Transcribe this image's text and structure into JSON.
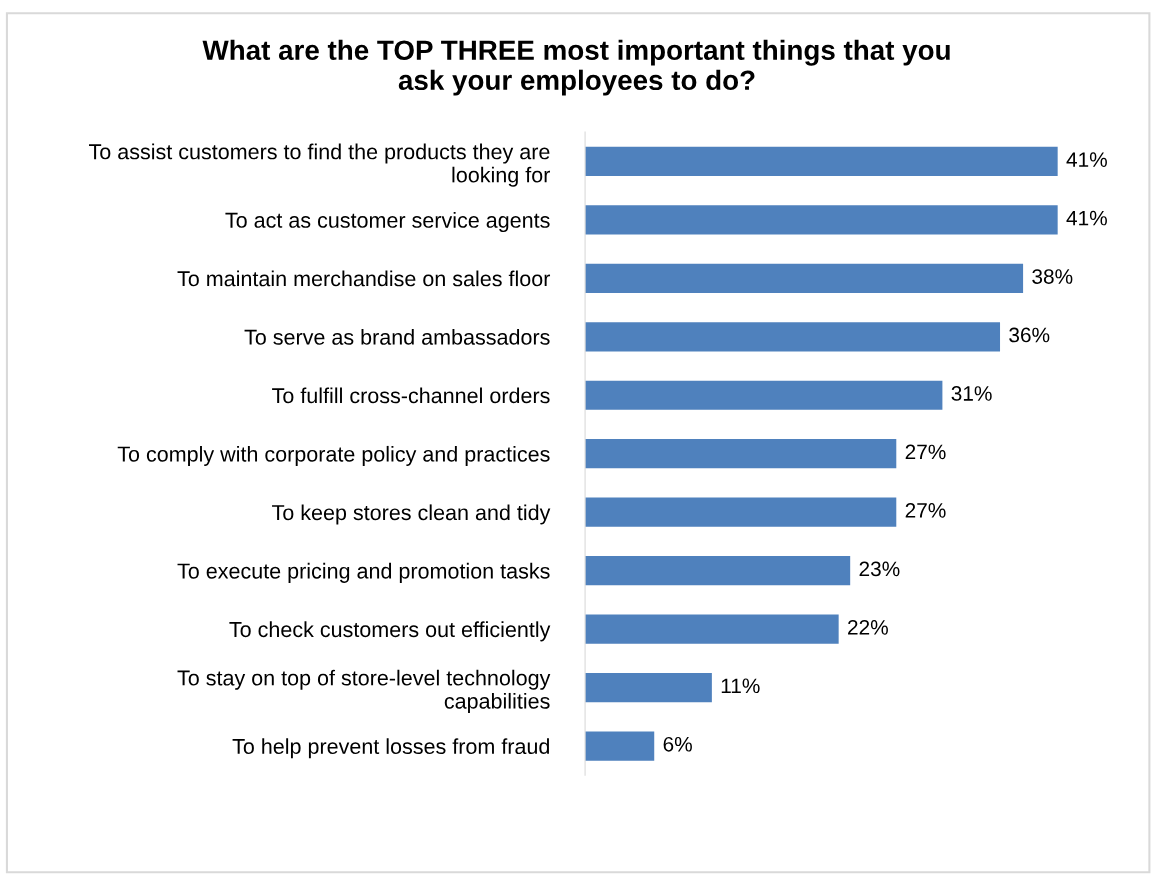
{
  "chart_data": {
    "type": "bar",
    "orientation": "horizontal",
    "title": "What are the TOP THREE most important things that you\nask your employees to do?",
    "categories": [
      "To assist customers to find the products they are\nlooking for",
      "To act as customer service agents",
      "To maintain merchandise on sales floor",
      "To serve as brand ambassadors",
      "To fulfill cross-channel orders",
      "To comply with corporate policy and practices",
      "To keep stores clean and tidy",
      "To execute pricing and promotion tasks",
      "To check customers out efficiently",
      "To stay on top of store-level technology\ncapabilities",
      "To help prevent losses from fraud"
    ],
    "values": [
      41,
      41,
      38,
      36,
      31,
      27,
      27,
      23,
      22,
      11,
      6
    ],
    "value_labels": [
      "41%",
      "41%",
      "38%",
      "36%",
      "31%",
      "27%",
      "27%",
      "23%",
      "22%",
      "11%",
      "6%"
    ],
    "color": "#4f81bd",
    "grid": false,
    "legend": false
  }
}
